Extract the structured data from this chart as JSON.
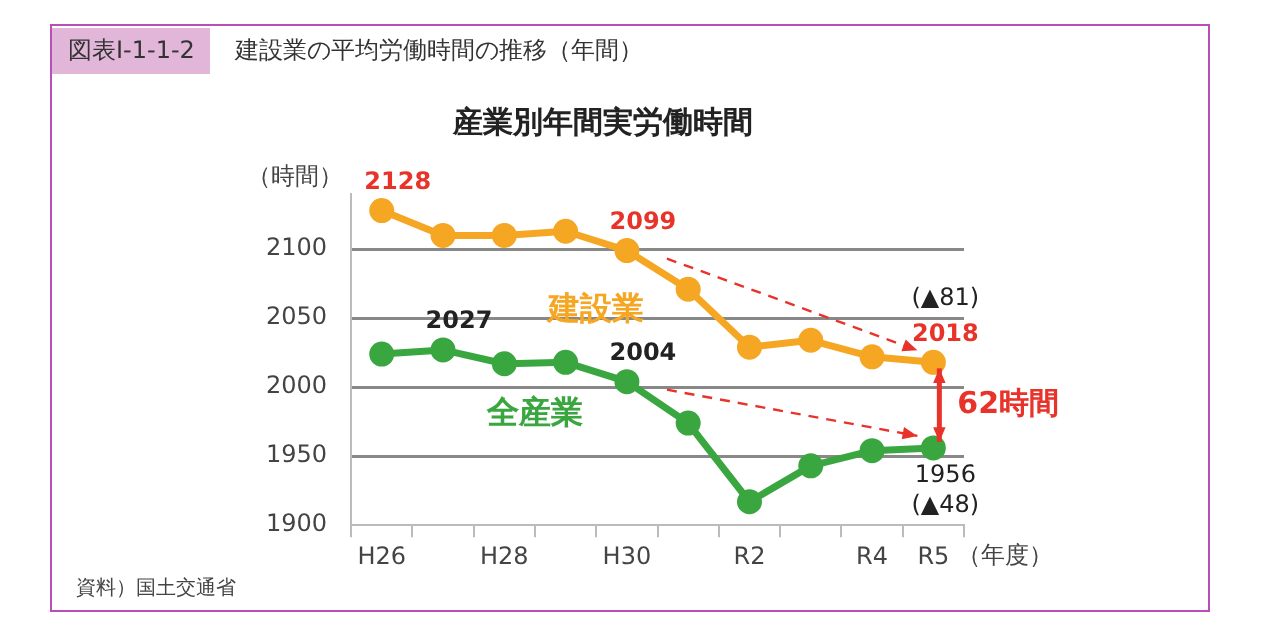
{
  "chart_data": {
    "type": "line",
    "title": "産業別年間実労働時間",
    "subtitle": "建設業の平均労働時間の推移（年間）",
    "ylabel": "（時間）",
    "xlabel": "（年度）",
    "categories": [
      "H26",
      null,
      "H28",
      null,
      "H30",
      null,
      "R2",
      null,
      "R4",
      "R5"
    ],
    "series": [
      {
        "name": "建設業",
        "color": "#f5a623",
        "values": [
          2128,
          2110,
          2110,
          2113,
          2099,
          2071,
          2029,
          2034,
          2022,
          2018
        ],
        "value_labels": [
          "2128",
          null,
          null,
          null,
          "2099",
          null,
          null,
          null,
          null,
          "2018"
        ]
      },
      {
        "name": "全産業",
        "color": "#3aa640",
        "values": [
          2024,
          2027,
          2017,
          2018,
          2004,
          1974,
          1917,
          1943,
          1954,
          1956
        ],
        "value_labels": [
          null,
          "2027",
          null,
          null,
          "2004",
          null,
          null,
          null,
          null,
          "1956"
        ]
      }
    ],
    "ylim": [
      1900,
      2140
    ],
    "yticks": [
      1900,
      1950,
      2000,
      2050,
      2100
    ],
    "grid": "y",
    "legend": false,
    "marker": "circle",
    "line_style": "solid",
    "annotations": [
      "図表Ⅰ-1-1-2",
      "(▲81)",
      "(▲48)",
      "62時間",
      "資料）国土交通省"
    ]
  }
}
